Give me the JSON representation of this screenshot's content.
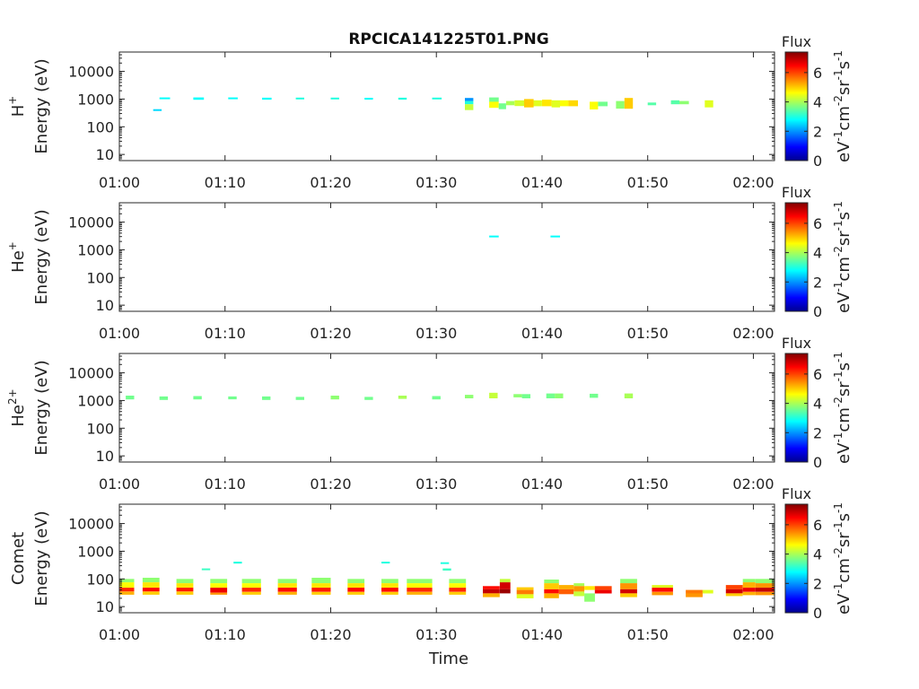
{
  "chart_data": {
    "type": "heatmap",
    "title": "RPCICA141225T01.PNG",
    "xlabel": "Time",
    "time_ticks": [
      "01:00",
      "01:10",
      "01:20",
      "01:30",
      "01:40",
      "01:50",
      "02:00"
    ],
    "xlim_minutes": [
      0,
      62
    ],
    "energy_ticks": [
      "10",
      "100",
      "1000",
      "10000"
    ],
    "ylim_eV": [
      6,
      50000
    ],
    "colorbar": {
      "label_top": "Flux",
      "label_main": "eV",
      "label_exp1": "-1",
      "label_cm": "cm",
      "label_exp2": "-2",
      "label_sr": "sr",
      "label_exp3": "-1",
      "label_s": "s",
      "label_exp4": "-1",
      "ticks": [
        "0",
        "2",
        "4",
        "6"
      ],
      "range": [
        0,
        7.4
      ],
      "colors": [
        "#00008f",
        "#0000ff",
        "#0080ff",
        "#00ffff",
        "#80ff80",
        "#ffff00",
        "#ff8000",
        "#ff0000",
        "#800000"
      ]
    },
    "panels": [
      {
        "species": "H",
        "species_sup": "+",
        "ylabel": "Energy (eV)",
        "cells": [
          [
            3.2,
            4.0,
            380,
            430,
            2.5
          ],
          [
            3.8,
            4.8,
            1000,
            1150,
            2.8
          ],
          [
            7.0,
            8.0,
            950,
            1150,
            2.8
          ],
          [
            10.3,
            11.2,
            1000,
            1150,
            2.8
          ],
          [
            13.5,
            14.4,
            950,
            1120,
            2.8
          ],
          [
            16.7,
            17.5,
            1000,
            1130,
            3.0
          ],
          [
            20.0,
            20.8,
            1000,
            1130,
            3.0
          ],
          [
            23.2,
            24.0,
            950,
            1110,
            2.8
          ],
          [
            26.4,
            27.2,
            950,
            1120,
            3.0
          ],
          [
            29.6,
            30.5,
            1000,
            1130,
            3.0
          ],
          [
            32.7,
            33.5,
            850,
            1100,
            2.0
          ],
          [
            32.7,
            33.5,
            650,
            850,
            3.0
          ],
          [
            32.7,
            33.5,
            400,
            650,
            4.2
          ],
          [
            35.0,
            35.9,
            800,
            1150,
            3.6
          ],
          [
            35.0,
            35.9,
            480,
            800,
            4.6
          ],
          [
            35.9,
            36.6,
            430,
            700,
            3.6
          ],
          [
            36.6,
            37.4,
            600,
            850,
            4.0
          ],
          [
            37.4,
            38.3,
            560,
            900,
            4.3
          ],
          [
            38.3,
            39.2,
            500,
            1000,
            5.0
          ],
          [
            39.2,
            40.0,
            550,
            900,
            4.4
          ],
          [
            40.0,
            40.9,
            550,
            950,
            4.8
          ],
          [
            40.9,
            41.7,
            500,
            900,
            4.4
          ],
          [
            41.7,
            42.5,
            550,
            900,
            4.6
          ],
          [
            42.5,
            43.4,
            550,
            900,
            4.9
          ],
          [
            44.5,
            45.3,
            420,
            800,
            4.6
          ],
          [
            45.3,
            46.2,
            550,
            800,
            3.6
          ],
          [
            47.0,
            47.8,
            450,
            850,
            3.8
          ],
          [
            47.8,
            48.6,
            450,
            1100,
            5.0
          ],
          [
            50.0,
            50.8,
            600,
            750,
            3.4
          ],
          [
            52.2,
            53.0,
            650,
            900,
            3.4
          ],
          [
            53.0,
            53.9,
            650,
            850,
            3.8
          ],
          [
            55.4,
            56.2,
            500,
            900,
            4.4
          ]
        ]
      },
      {
        "species": "He",
        "species_sup": "+",
        "ylabel": "Energy (eV)",
        "cells": [
          [
            35.0,
            35.9,
            2850,
            3250,
            2.8
          ],
          [
            40.8,
            41.7,
            2850,
            3250,
            2.8
          ]
        ]
      },
      {
        "species": "He",
        "species_sup": "2+",
        "ylabel": "Energy (eV)",
        "cells": [
          [
            0.6,
            1.4,
            1100,
            1500,
            3.6
          ],
          [
            3.8,
            4.6,
            1050,
            1400,
            3.6
          ],
          [
            7.0,
            7.8,
            1100,
            1450,
            3.6
          ],
          [
            10.3,
            11.1,
            1100,
            1400,
            3.6
          ],
          [
            13.5,
            14.3,
            1050,
            1400,
            3.6
          ],
          [
            16.7,
            17.5,
            1050,
            1350,
            3.6
          ],
          [
            20.0,
            20.8,
            1100,
            1500,
            3.8
          ],
          [
            23.2,
            24.0,
            1050,
            1350,
            3.6
          ],
          [
            26.4,
            27.2,
            1150,
            1500,
            4.0
          ],
          [
            29.6,
            30.4,
            1100,
            1450,
            3.6
          ],
          [
            32.7,
            33.5,
            1200,
            1600,
            3.8
          ],
          [
            35.0,
            35.8,
            1200,
            1900,
            4.2
          ],
          [
            37.3,
            38.1,
            1300,
            1700,
            3.8
          ],
          [
            38.1,
            38.9,
            1200,
            1700,
            3.6
          ],
          [
            40.4,
            41.2,
            1200,
            1800,
            3.6
          ],
          [
            41.2,
            42.0,
            1200,
            1800,
            3.8
          ],
          [
            44.5,
            45.3,
            1250,
            1750,
            3.6
          ],
          [
            47.8,
            48.6,
            1200,
            1800,
            4.0
          ]
        ]
      },
      {
        "species": "Comet",
        "species_sup": "",
        "ylabel": "Energy (eV)",
        "cells": [
          [
            0.0,
            1.4,
            75,
            100,
            3.8
          ],
          [
            0.0,
            1.4,
            48,
            75,
            4.6
          ],
          [
            0.0,
            1.4,
            35,
            48,
            6.2
          ],
          [
            0.0,
            1.4,
            27,
            35,
            5.2
          ],
          [
            2.2,
            3.8,
            75,
            110,
            3.8
          ],
          [
            2.2,
            3.8,
            48,
            75,
            4.8
          ],
          [
            2.2,
            3.8,
            35,
            48,
            6.4
          ],
          [
            2.2,
            3.8,
            27,
            35,
            5.0
          ],
          [
            5.4,
            7.0,
            70,
            100,
            3.8
          ],
          [
            5.4,
            7.0,
            48,
            70,
            4.8
          ],
          [
            5.4,
            7.0,
            35,
            48,
            6.3
          ],
          [
            5.4,
            7.0,
            27,
            35,
            5.0
          ],
          [
            7.8,
            8.6,
            210,
            240,
            3.2
          ],
          [
            8.6,
            10.2,
            70,
            100,
            3.8
          ],
          [
            8.6,
            10.2,
            48,
            70,
            4.6
          ],
          [
            8.6,
            10.2,
            32,
            48,
            6.6
          ],
          [
            8.6,
            10.2,
            27,
            32,
            5.4
          ],
          [
            10.8,
            11.6,
            360,
            420,
            3.0
          ],
          [
            11.6,
            13.4,
            70,
            100,
            3.8
          ],
          [
            11.6,
            13.4,
            48,
            70,
            4.6
          ],
          [
            11.6,
            13.4,
            34,
            48,
            6.2
          ],
          [
            11.6,
            13.4,
            27,
            34,
            5.0
          ],
          [
            15.0,
            16.8,
            70,
            100,
            3.8
          ],
          [
            15.0,
            16.8,
            48,
            70,
            4.8
          ],
          [
            15.0,
            16.8,
            34,
            48,
            6.4
          ],
          [
            15.0,
            16.8,
            27,
            34,
            5.2
          ],
          [
            18.2,
            20.0,
            70,
            110,
            3.8
          ],
          [
            18.2,
            20.0,
            48,
            70,
            4.8
          ],
          [
            18.2,
            20.0,
            34,
            48,
            6.3
          ],
          [
            18.2,
            20.0,
            27,
            34,
            5.0
          ],
          [
            21.6,
            23.2,
            70,
            100,
            3.8
          ],
          [
            21.6,
            23.2,
            48,
            70,
            4.8
          ],
          [
            21.6,
            23.2,
            34,
            48,
            6.4
          ],
          [
            21.6,
            23.2,
            27,
            34,
            5.0
          ],
          [
            24.8,
            25.6,
            380,
            420,
            3.0
          ],
          [
            24.8,
            26.4,
            70,
            100,
            3.8
          ],
          [
            24.8,
            26.4,
            48,
            70,
            4.8
          ],
          [
            24.8,
            26.4,
            34,
            48,
            6.4
          ],
          [
            24.8,
            26.4,
            27,
            34,
            5.0
          ],
          [
            27.2,
            29.6,
            70,
            100,
            3.8
          ],
          [
            27.2,
            29.6,
            48,
            70,
            4.6
          ],
          [
            27.2,
            29.6,
            34,
            48,
            6.2
          ],
          [
            27.2,
            29.6,
            27,
            34,
            5.2
          ],
          [
            30.4,
            31.2,
            360,
            400,
            3.0
          ],
          [
            30.6,
            31.4,
            200,
            240,
            3.2
          ],
          [
            31.2,
            32.8,
            70,
            100,
            3.8
          ],
          [
            31.2,
            32.8,
            48,
            70,
            4.6
          ],
          [
            31.2,
            32.8,
            34,
            48,
            6.2
          ],
          [
            31.2,
            32.8,
            27,
            34,
            5.0
          ],
          [
            34.4,
            36.0,
            42,
            55,
            6.4
          ],
          [
            34.4,
            36.0,
            30,
            42,
            6.9
          ],
          [
            34.4,
            36.0,
            22,
            30,
            5.2
          ],
          [
            36.0,
            37.0,
            75,
            100,
            4.2
          ],
          [
            36.0,
            37.0,
            42,
            75,
            6.8
          ],
          [
            36.0,
            37.0,
            30,
            42,
            7.2
          ],
          [
            37.6,
            39.2,
            40,
            50,
            5.0
          ],
          [
            37.6,
            39.2,
            28,
            40,
            5.6
          ],
          [
            37.6,
            39.2,
            20,
            28,
            4.4
          ],
          [
            40.2,
            41.6,
            70,
            95,
            3.8
          ],
          [
            40.2,
            41.6,
            42,
            70,
            5.0
          ],
          [
            40.2,
            41.6,
            30,
            42,
            6.4
          ],
          [
            40.2,
            41.6,
            20,
            30,
            5.2
          ],
          [
            41.6,
            43.0,
            42,
            60,
            5.2
          ],
          [
            41.6,
            43.0,
            28,
            42,
            5.8
          ],
          [
            43.0,
            44.0,
            55,
            70,
            4.0
          ],
          [
            43.0,
            44.0,
            35,
            55,
            5.4
          ],
          [
            43.0,
            44.0,
            24,
            35,
            4.2
          ],
          [
            44.0,
            45.0,
            40,
            55,
            4.8
          ],
          [
            44.0,
            45.0,
            15,
            30,
            3.8
          ],
          [
            45.0,
            46.6,
            40,
            55,
            6.0
          ],
          [
            45.0,
            46.6,
            30,
            40,
            6.6
          ],
          [
            47.4,
            49.0,
            70,
            100,
            3.8
          ],
          [
            47.4,
            49.0,
            42,
            70,
            5.4
          ],
          [
            47.4,
            49.0,
            30,
            42,
            6.8
          ],
          [
            47.4,
            49.0,
            22,
            30,
            5.0
          ],
          [
            50.4,
            52.4,
            48,
            60,
            4.4
          ],
          [
            50.4,
            52.4,
            34,
            48,
            6.4
          ],
          [
            50.4,
            52.4,
            26,
            34,
            5.4
          ],
          [
            53.6,
            55.2,
            30,
            40,
            5.6
          ],
          [
            53.6,
            55.2,
            22,
            30,
            5.4
          ],
          [
            55.2,
            56.2,
            30,
            40,
            4.4
          ],
          [
            57.4,
            59.0,
            42,
            60,
            6.0
          ],
          [
            57.4,
            59.0,
            30,
            42,
            6.8
          ],
          [
            57.4,
            59.0,
            24,
            30,
            5.0
          ],
          [
            59.0,
            60.2,
            75,
            100,
            3.8
          ],
          [
            59.0,
            60.2,
            48,
            75,
            5.2
          ],
          [
            59.0,
            60.2,
            34,
            48,
            6.6
          ],
          [
            59.0,
            60.2,
            26,
            34,
            5.2
          ],
          [
            60.2,
            62.0,
            70,
            100,
            3.8
          ],
          [
            60.2,
            62.0,
            48,
            70,
            5.4
          ],
          [
            60.2,
            62.0,
            34,
            48,
            6.9
          ],
          [
            60.2,
            62.0,
            26,
            34,
            5.4
          ]
        ]
      }
    ]
  }
}
